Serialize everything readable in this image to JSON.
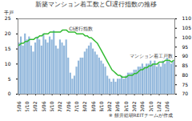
{
  "chart_data": {
    "type": "bar",
    "title": "新築マンション着工数とCI遅行指数の推移",
    "y_label": "千戸",
    "caption": "※ 餅井総研REITチームが作成",
    "categories": [
      "05/06",
      null,
      null,
      null,
      "05/10",
      null,
      null,
      null,
      "06/02",
      null,
      null,
      null,
      "06/06",
      null,
      null,
      null,
      "06/10",
      null,
      null,
      null,
      "07/02",
      null,
      null,
      null,
      "07/06",
      null,
      null,
      null,
      "07/10",
      null,
      null,
      null,
      "08/02",
      null,
      null,
      null,
      "08/06",
      null,
      null,
      null,
      "08/10",
      null,
      null,
      null,
      "09/02",
      null,
      null,
      null,
      "09/06",
      null,
      null,
      null,
      "09/10",
      null,
      null,
      null,
      "10/02",
      null,
      null,
      null,
      "10/06",
      null,
      null,
      null,
      "10/10",
      null,
      null,
      null,
      "11/02",
      null,
      null,
      null,
      "11/06",
      null,
      null,
      null
    ],
    "series": [
      {
        "name": "マンション着工戸数",
        "type": "bar",
        "color": "#93b8dc",
        "values": [
          17,
          19,
          16,
          20,
          18,
          19,
          16,
          14,
          17,
          19,
          18,
          16,
          20,
          18,
          17,
          19,
          18,
          21,
          16,
          15,
          18,
          17,
          16,
          18,
          12,
          7,
          5,
          6,
          9,
          11,
          12,
          12,
          14,
          15,
          16,
          17,
          15,
          14,
          13,
          12,
          11,
          10,
          9,
          6,
          5,
          4,
          5,
          4,
          5,
          5,
          6,
          5,
          6,
          7,
          7,
          7,
          8,
          8,
          9,
          9,
          10,
          9,
          10,
          10,
          11,
          10,
          11,
          9,
          10,
          9,
          11,
          10,
          12,
          11,
          10,
          11
        ]
      },
      {
        "name": "CI遅行指数",
        "type": "line",
        "color": "#33bb33",
        "axis": "y2",
        "values": [
          96,
          97,
          97,
          98,
          98,
          99,
          99,
          99,
          100,
          100,
          101,
          101,
          102,
          102,
          102,
          103,
          103,
          103,
          103,
          103,
          103,
          104,
          104,
          104,
          103,
          103,
          103,
          103,
          102,
          102,
          102,
          102,
          101,
          101,
          100,
          100,
          99,
          98,
          97,
          95,
          93,
          91,
          89,
          87,
          85,
          83,
          82,
          81,
          80,
          80,
          79,
          79,
          79,
          80,
          80,
          80,
          81,
          81,
          82,
          83,
          83,
          84,
          84,
          85,
          85,
          86,
          86,
          86,
          87,
          87,
          87,
          88,
          88,
          88,
          87,
          88
        ]
      }
    ],
    "ylim": [
      0,
      25
    ],
    "yticks": [
      0,
      5,
      10,
      15,
      20,
      25
    ],
    "y2lim": [
      70,
      110
    ],
    "y2ticks": [
      70,
      75,
      80,
      85,
      90,
      95,
      100,
      105,
      110
    ],
    "grid": false
  }
}
